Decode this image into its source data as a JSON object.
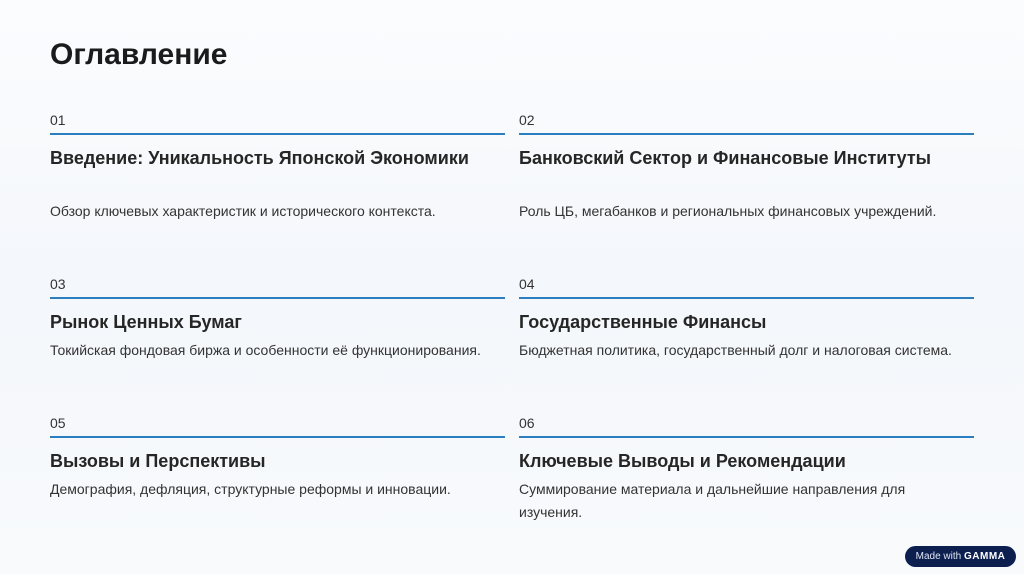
{
  "page": {
    "title": "Оглавление"
  },
  "items": [
    {
      "number": "01",
      "title": "Введение: Уникальность Японской Экономики",
      "description": "Обзор ключевых характеристик и исторического контекста."
    },
    {
      "number": "02",
      "title": "Банковский Сектор и Финансовые Институты",
      "description": "Роль ЦБ, мегабанков и региональных финансовых учреждений."
    },
    {
      "number": "03",
      "title": "Рынок Ценных Бумаг",
      "description": "Токийская фондовая биржа и особенности её функционирования."
    },
    {
      "number": "04",
      "title": "Государственные Финансы",
      "description": "Бюджетная политика, государственный долг и налоговая система."
    },
    {
      "number": "05",
      "title": "Вызовы и Перспективы",
      "description": "Демография, дефляция, структурные реформы и инновации."
    },
    {
      "number": "06",
      "title": "Ключевые Выводы и Рекомендации",
      "description": "Суммирование материала и дальнейшие направления для изучения."
    }
  ],
  "badge": {
    "prefix": "Made with",
    "brand": "GAMMA"
  },
  "colors": {
    "accent_line": "#2b7fc0",
    "badge_bg": "#0d1f4f"
  }
}
